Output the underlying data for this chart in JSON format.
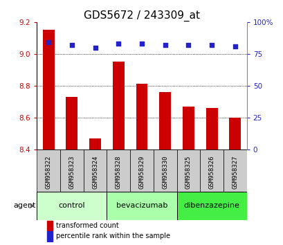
{
  "title": "GDS5672 / 243309_at",
  "samples": [
    "GSM958322",
    "GSM958323",
    "GSM958324",
    "GSM958328",
    "GSM958329",
    "GSM958330",
    "GSM958325",
    "GSM958326",
    "GSM958327"
  ],
  "bar_values": [
    9.15,
    8.73,
    8.47,
    8.95,
    8.81,
    8.76,
    8.67,
    8.66,
    8.6
  ],
  "percentile_values": [
    84,
    82,
    80,
    83,
    83,
    82,
    82,
    82,
    81
  ],
  "bar_bottom": 8.4,
  "ylim_left": [
    8.4,
    9.2
  ],
  "ylim_right": [
    0,
    100
  ],
  "yticks_left": [
    8.4,
    8.6,
    8.8,
    9.0,
    9.2
  ],
  "yticks_right": [
    0,
    25,
    50,
    75,
    100
  ],
  "ytick_labels_right": [
    "0",
    "25",
    "50",
    "75",
    "100%"
  ],
  "bar_color": "#cc0000",
  "dot_color": "#2222cc",
  "groups": [
    {
      "label": "control",
      "indices": [
        0,
        1,
        2
      ],
      "color": "#ccffcc"
    },
    {
      "label": "bevacizumab",
      "indices": [
        3,
        4,
        5
      ],
      "color": "#aaffaa"
    },
    {
      "label": "dibenzazepine",
      "indices": [
        6,
        7,
        8
      ],
      "color": "#44ee44"
    }
  ],
  "agent_label": "agent",
  "legend_bar_label": "transformed count",
  "legend_dot_label": "percentile rank within the sample",
  "bar_width": 0.5,
  "grid_color": "#000000",
  "plot_bg": "#ffffff",
  "cell_bg": "#cccccc",
  "tick_color_left": "#cc0000",
  "tick_color_right": "#2222cc",
  "title_fontsize": 11
}
